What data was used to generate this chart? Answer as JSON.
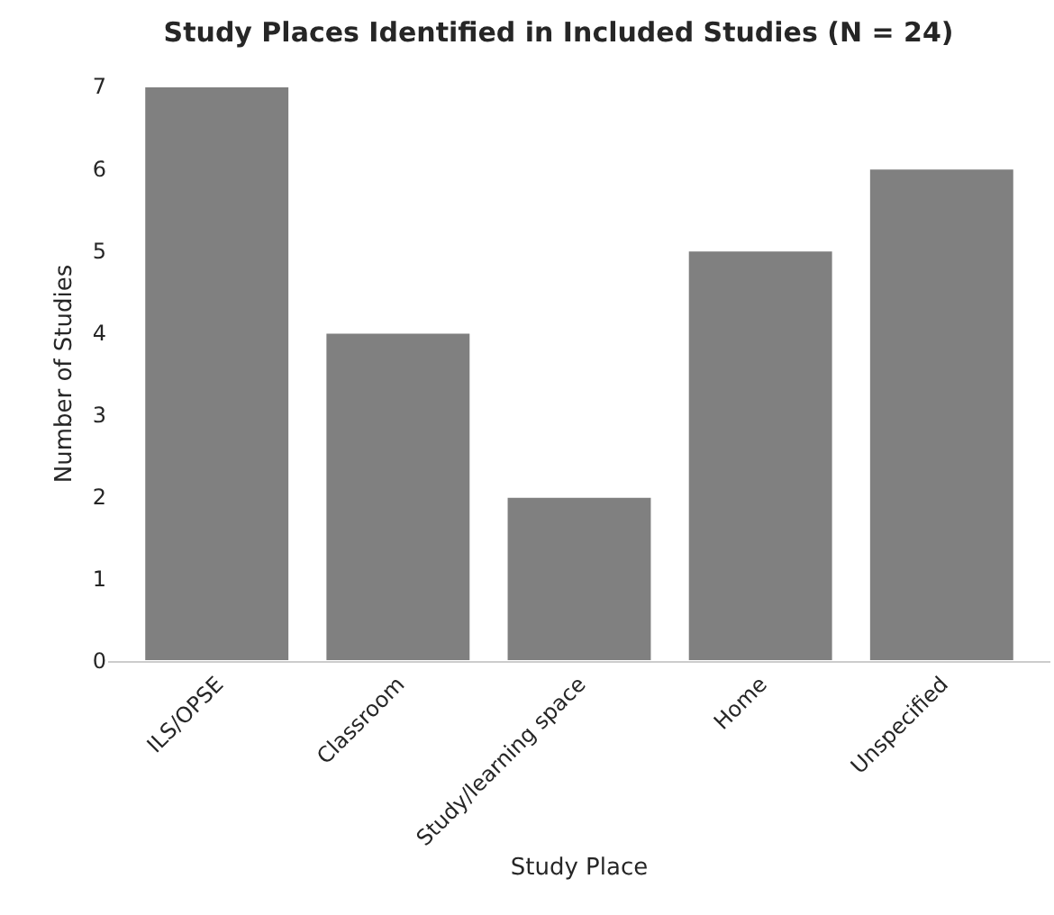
{
  "chart_data": {
    "type": "bar",
    "title": "Study Places Identified in Included Studies (N = 24)",
    "xlabel": "Study Place",
    "ylabel": "Number of Studies",
    "categories": [
      "ILS/OPSE",
      "Classroom",
      "Study/learning space",
      "Home",
      "Unspecified"
    ],
    "values": [
      7,
      4,
      2,
      5,
      6
    ],
    "color": "#808080",
    "ylim": [
      0,
      7
    ],
    "yticks": [
      0,
      1,
      2,
      3,
      4,
      5,
      6,
      7
    ],
    "grid": false,
    "legend": false
  }
}
